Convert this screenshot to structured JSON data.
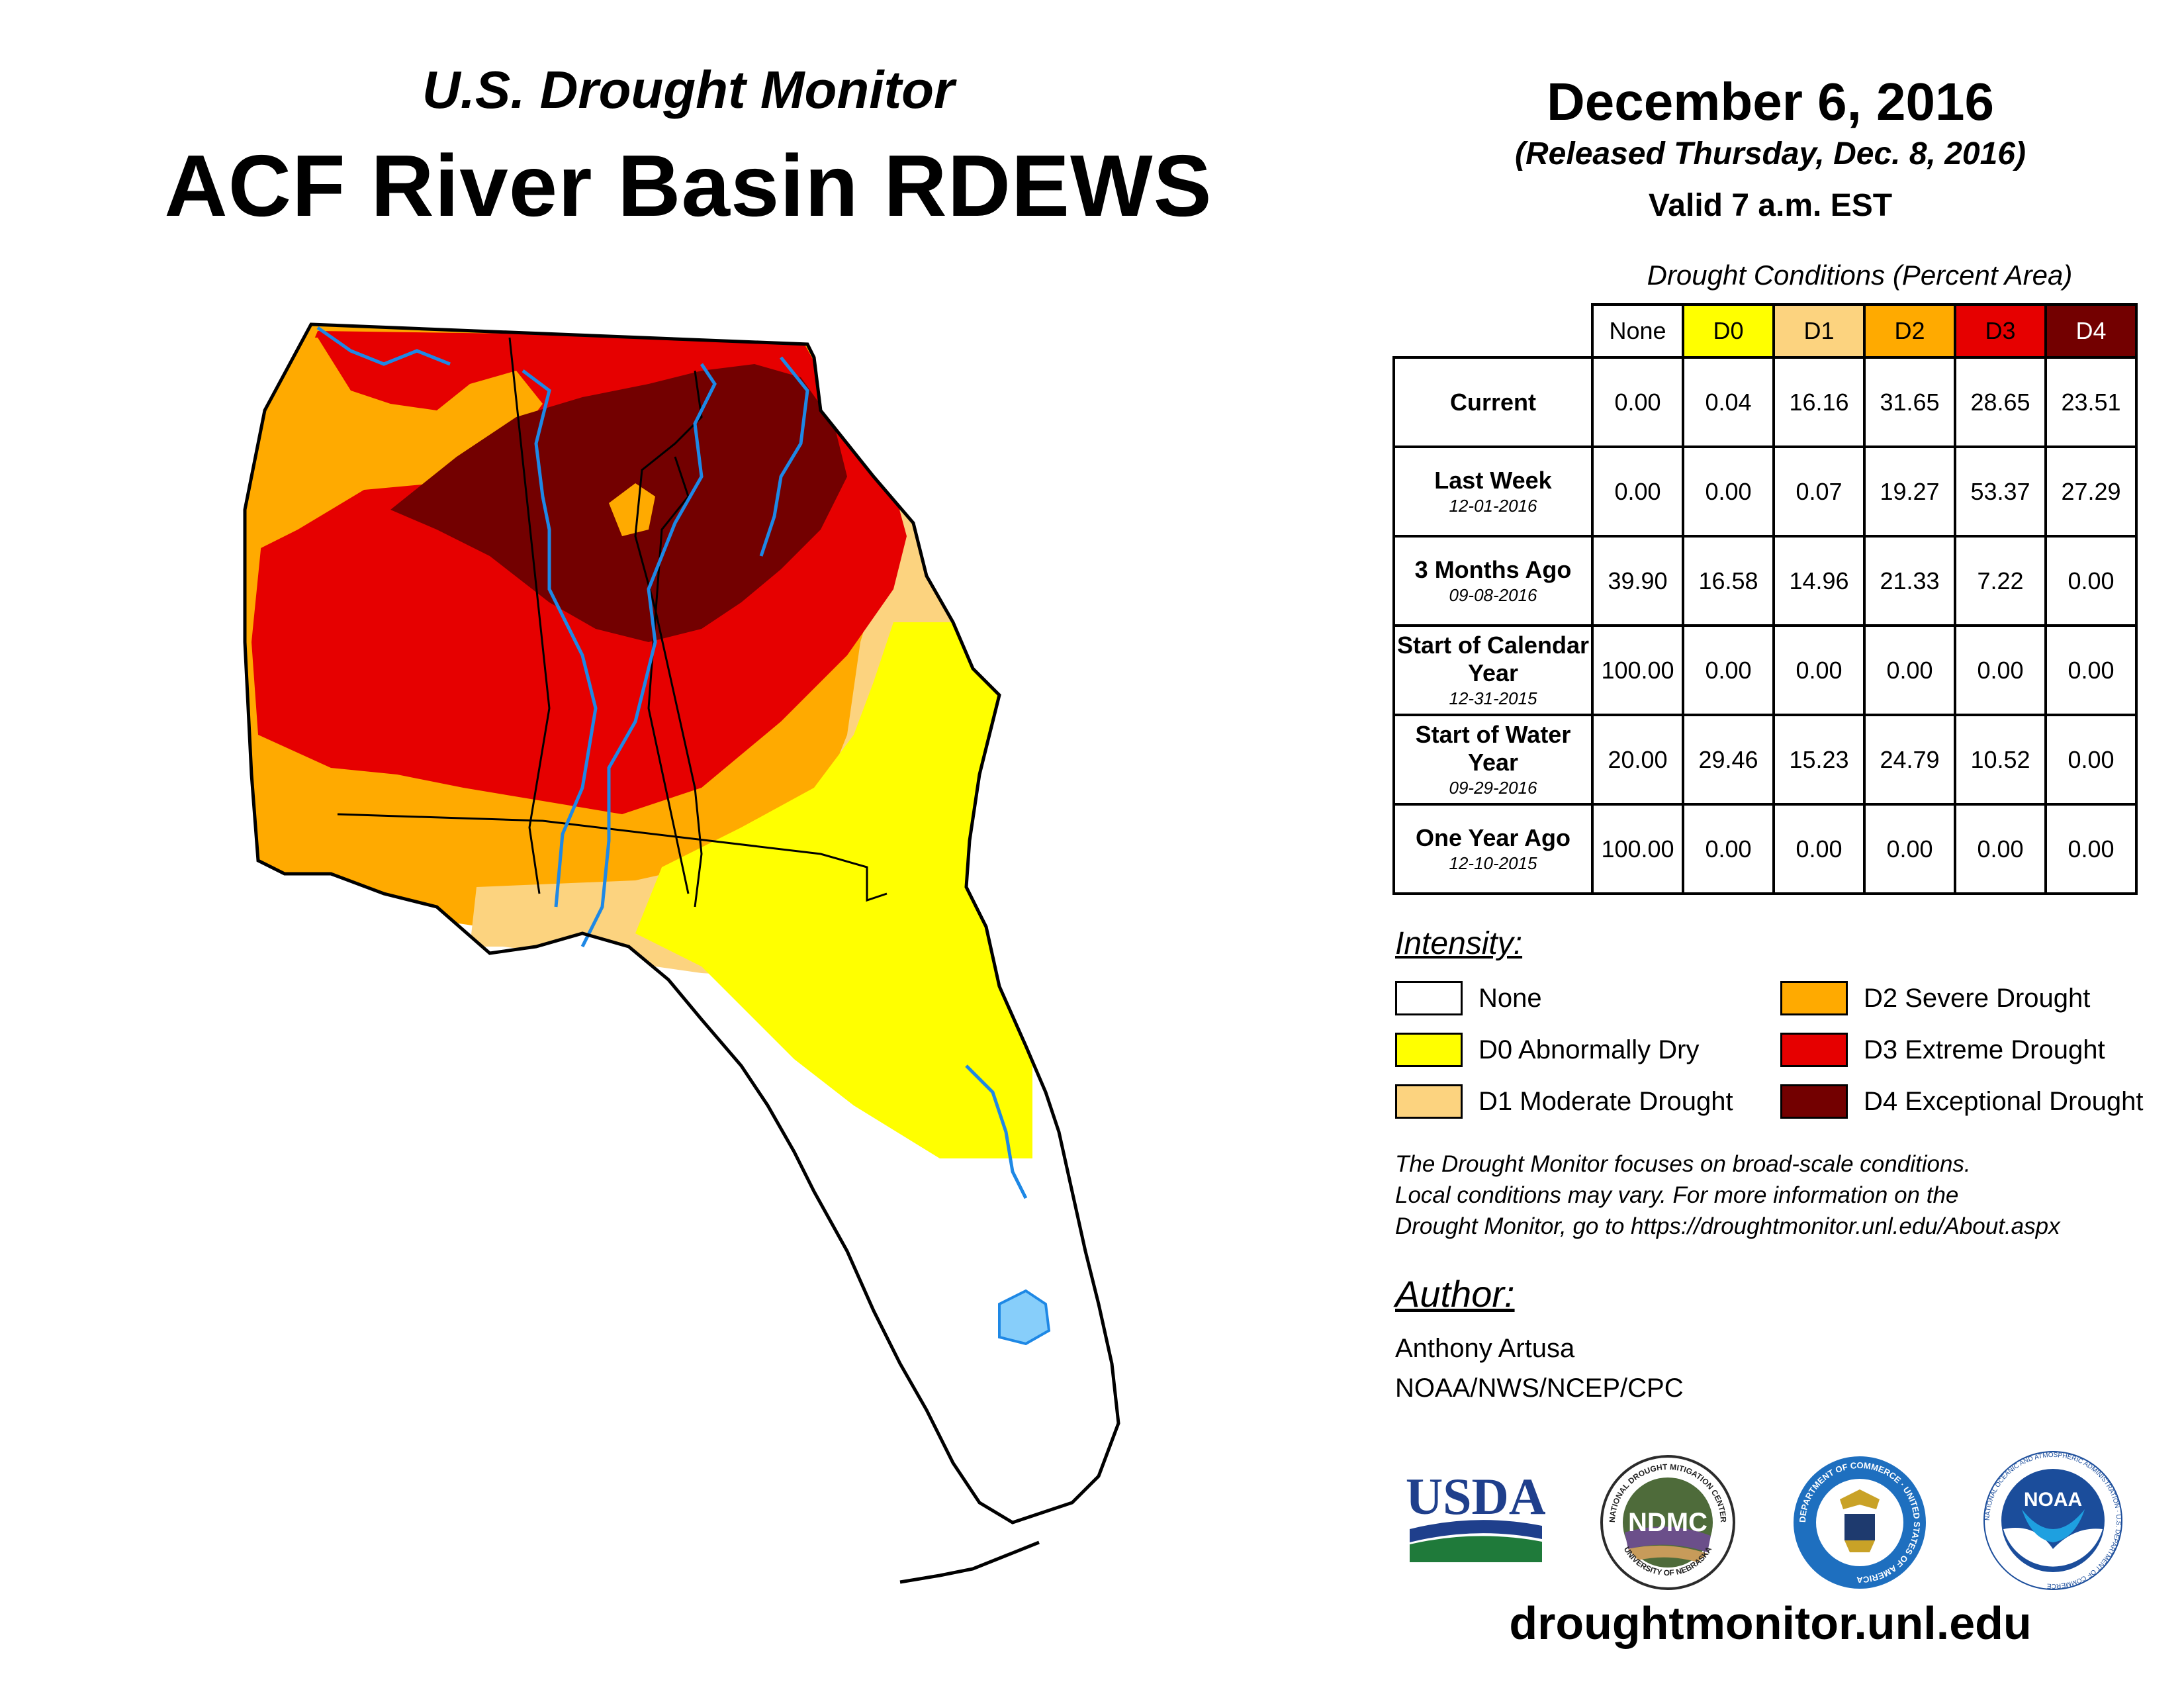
{
  "header": {
    "subtitle": "U.S. Drought Monitor",
    "title": "ACF River Basin RDEWS",
    "date": "December 6, 2016",
    "released": "(Released Thursday, Dec. 8, 2016)",
    "valid": "Valid 7 a.m. EST"
  },
  "table": {
    "caption": "Drought Conditions (Percent Area)",
    "columns": [
      "None",
      "D0",
      "D1",
      "D2",
      "D3",
      "D4"
    ],
    "rows": [
      {
        "label": "Current",
        "date": "",
        "values": [
          "0.00",
          "0.04",
          "16.16",
          "31.65",
          "28.65",
          "23.51"
        ]
      },
      {
        "label": "Last Week",
        "date": "12-01-2016",
        "values": [
          "0.00",
          "0.00",
          "0.07",
          "19.27",
          "53.37",
          "27.29"
        ]
      },
      {
        "label": "3 Months Ago",
        "date": "09-08-2016",
        "values": [
          "39.90",
          "16.58",
          "14.96",
          "21.33",
          "7.22",
          "0.00"
        ]
      },
      {
        "label": "Start of Calendar Year",
        "date": "12-31-2015",
        "values": [
          "100.00",
          "0.00",
          "0.00",
          "0.00",
          "0.00",
          "0.00"
        ]
      },
      {
        "label": "Start of Water Year",
        "date": "09-29-2016",
        "values": [
          "20.00",
          "29.46",
          "15.23",
          "24.79",
          "10.52",
          "0.00"
        ]
      },
      {
        "label": "One Year Ago",
        "date": "12-10-2015",
        "values": [
          "100.00",
          "0.00",
          "0.00",
          "0.00",
          "0.00",
          "0.00"
        ]
      }
    ]
  },
  "legend": {
    "title": "Intensity:",
    "items": [
      {
        "label": "None",
        "color": "#ffffff"
      },
      {
        "label": "D0 Abnormally Dry",
        "color": "#ffff00"
      },
      {
        "label": "D1 Moderate Drought",
        "color": "#fcd37f"
      },
      {
        "label": "D2 Severe Drought",
        "color": "#ffaa00"
      },
      {
        "label": "D3 Extreme Drought",
        "color": "#e60000"
      },
      {
        "label": "D4 Exceptional Drought",
        "color": "#730000"
      }
    ]
  },
  "note": {
    "line1": "The Drought Monitor focuses on broad-scale conditions.",
    "line2": "Local conditions may vary. For more information on the",
    "line3": "Drought Monitor, go to https://droughtmonitor.unl.edu/About.aspx"
  },
  "author": {
    "label": "Author:",
    "name": "Anthony Artusa",
    "org": "NOAA/NWS/NCEP/CPC"
  },
  "logos": {
    "usda": "USDA",
    "ndmc": "NDMC",
    "ndmc_ring_top": "NATIONAL DROUGHT MITIGATION CENTER",
    "ndmc_ring_bottom": "UNIVERSITY OF NEBRASKA",
    "doc_ring": "DEPARTMENT OF COMMERCE · UNITED STATES OF AMERICA",
    "noaa": "NOAA",
    "noaa_ring": "NATIONAL OCEANIC AND ATMOSPHERIC ADMINISTRATION · U.S. DEPARTMENT OF COMMERCE"
  },
  "site": "droughtmonitor.unl.edu"
}
